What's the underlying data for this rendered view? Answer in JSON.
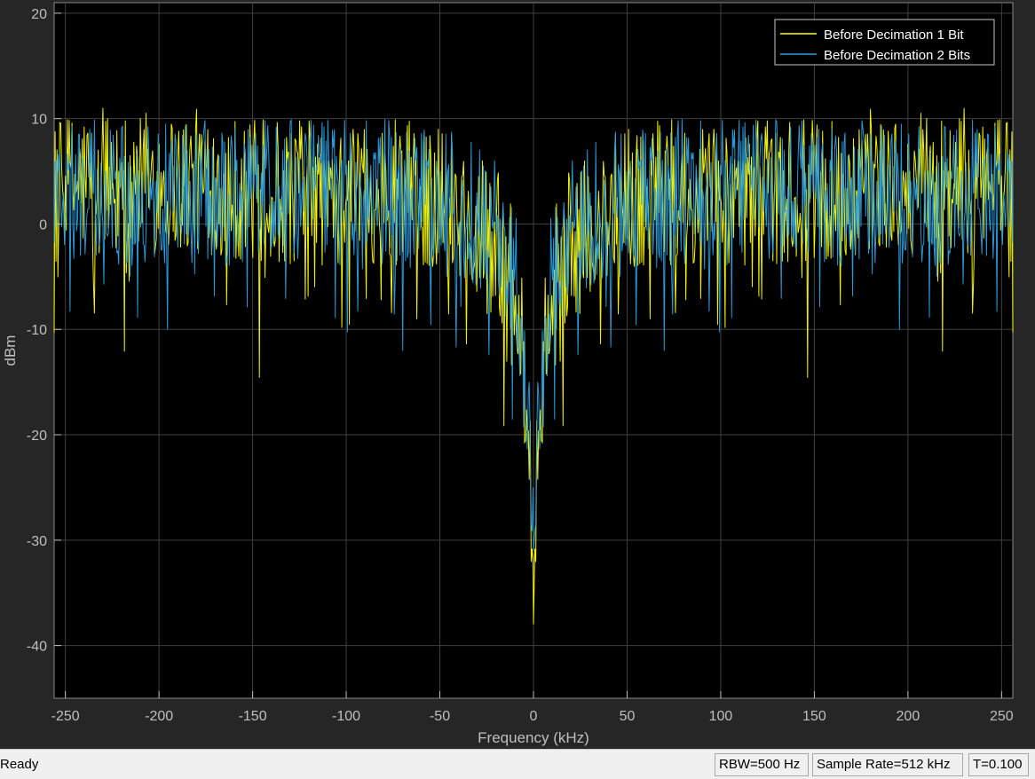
{
  "chart_data": {
    "type": "line",
    "title": "",
    "xlabel": "Frequency (kHz)",
    "ylabel": "dBm",
    "xlim": [
      -256,
      256
    ],
    "ylim": [
      -45,
      21
    ],
    "xticks": [
      -250,
      -200,
      -150,
      -100,
      -50,
      0,
      50,
      100,
      150,
      200,
      250
    ],
    "yticks": [
      -40,
      -30,
      -20,
      -10,
      0,
      10,
      20
    ],
    "grid": true,
    "legend_position": "top-right",
    "background": "#000000",
    "series": [
      {
        "name": "Before Decimation 1 Bit",
        "color": "#ffff00",
        "envelope_x": [
          -256,
          -240,
          -200,
          -170,
          -150,
          -130,
          -100,
          -80,
          -60,
          -40,
          -20,
          -10,
          -5,
          -2,
          0,
          2,
          5,
          10,
          20,
          40,
          60,
          80,
          100,
          130,
          150,
          170,
          200,
          240,
          256
        ],
        "envelope_y": [
          3,
          4,
          4,
          4,
          3,
          3,
          4,
          3,
          3,
          2,
          -1,
          -6,
          -14,
          -22,
          -38,
          -22,
          -14,
          -6,
          -1,
          2,
          3,
          3,
          4,
          3,
          3,
          4,
          4,
          4,
          3
        ],
        "peak_max": 14,
        "min": -38
      },
      {
        "name": "Before Decimation 2 Bits",
        "color": "#2d9fe0",
        "envelope_x": [
          -256,
          -240,
          -200,
          -170,
          -150,
          -130,
          -100,
          -80,
          -60,
          -40,
          -20,
          -10,
          -5,
          -2,
          0,
          2,
          5,
          10,
          20,
          40,
          60,
          80,
          100,
          130,
          150,
          170,
          200,
          240,
          256
        ],
        "envelope_y": [
          3,
          3,
          3,
          3,
          3,
          3,
          3,
          3,
          2,
          2,
          -1,
          -5,
          -12,
          -18,
          -29,
          -18,
          -12,
          -5,
          -1,
          2,
          2,
          3,
          3,
          3,
          3,
          3,
          3,
          3,
          3
        ],
        "peak_max": 14,
        "min": -31
      }
    ]
  },
  "status_bar": {
    "status": "Ready",
    "rbw": "RBW=500 Hz",
    "sample_rate": "Sample Rate=512 kHz",
    "time": "T=0.100"
  }
}
